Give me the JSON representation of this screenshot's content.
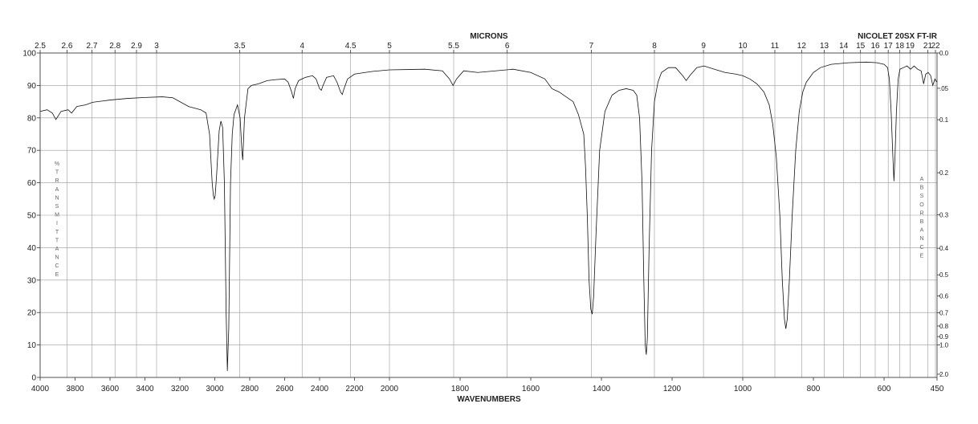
{
  "chart_data": {
    "type": "line",
    "title_top": "MICRONS",
    "instrument": "NICOLET 20SX FT-IR",
    "xlabel": "WAVENUMBERS",
    "ylabel_left": "%TRANSMITTANCE",
    "ylabel_right": "ABSORBANCE",
    "xlim": [
      4000,
      450
    ],
    "ylim": [
      0,
      100
    ],
    "grid": true,
    "wavenumber_ticks": [
      4000,
      3800,
      3600,
      3400,
      3200,
      3000,
      2800,
      2600,
      2400,
      2200,
      2000,
      1800,
      1600,
      1400,
      1200,
      1000,
      800,
      600,
      450
    ],
    "micron_ticks": [
      {
        "value": 2.5,
        "label": "2.5"
      },
      {
        "value": 2.6,
        "label": "2.6"
      },
      {
        "value": 2.7,
        "label": "2.7"
      },
      {
        "value": 2.8,
        "label": "2.8"
      },
      {
        "value": 2.9,
        "label": "2.9"
      },
      {
        "value": 3,
        "label": "3"
      },
      {
        "value": 3.5,
        "label": "3.5"
      },
      {
        "value": 4,
        "label": "4"
      },
      {
        "value": 4.5,
        "label": "4.5"
      },
      {
        "value": 5,
        "label": "5"
      },
      {
        "value": 5.5,
        "label": "5.5"
      },
      {
        "value": 6,
        "label": "6"
      },
      {
        "value": 7,
        "label": "7"
      },
      {
        "value": 8,
        "label": "8"
      },
      {
        "value": 9,
        "label": "9"
      },
      {
        "value": 10,
        "label": "10"
      },
      {
        "value": 11,
        "label": "11"
      },
      {
        "value": 12,
        "label": "12"
      },
      {
        "value": 13,
        "label": "13"
      },
      {
        "value": 14,
        "label": "14"
      },
      {
        "value": 15,
        "label": "15"
      },
      {
        "value": 16,
        "label": "16"
      },
      {
        "value": 17,
        "label": "17"
      },
      {
        "value": 18,
        "label": "18"
      },
      {
        "value": 19,
        "label": "19"
      },
      {
        "value": 21,
        "label": "21"
      },
      {
        "value": 22,
        "label": "22"
      }
    ],
    "transmittance_ticks": [
      0,
      10,
      20,
      30,
      40,
      50,
      60,
      70,
      80,
      90,
      100
    ],
    "absorbance_ticks": [
      {
        "value": 0.0,
        "label": "0.0"
      },
      {
        "value": 0.05,
        "label": ".05"
      },
      {
        "value": 0.1,
        "label": "0.1"
      },
      {
        "value": 0.2,
        "label": "0.2"
      },
      {
        "value": 0.3,
        "label": "0.3"
      },
      {
        "value": 0.4,
        "label": "0.4"
      },
      {
        "value": 0.5,
        "label": "0.5"
      },
      {
        "value": 0.6,
        "label": "0.6"
      },
      {
        "value": 0.7,
        "label": "0.7"
      },
      {
        "value": 0.8,
        "label": "0.8"
      },
      {
        "value": 0.9,
        "label": "0.9"
      },
      {
        "value": 1.0,
        "label": "1.0"
      },
      {
        "value": 2.0,
        "label": "2.0"
      }
    ],
    "series": [
      {
        "points": [
          [
            4000,
            82
          ],
          [
            3960,
            82.5
          ],
          [
            3930,
            81.5
          ],
          [
            3910,
            79.5
          ],
          [
            3880,
            82
          ],
          [
            3840,
            82.5
          ],
          [
            3820,
            81.5
          ],
          [
            3790,
            83.5
          ],
          [
            3740,
            84
          ],
          [
            3700,
            84.8
          ],
          [
            3600,
            85.5
          ],
          [
            3500,
            86
          ],
          [
            3400,
            86.3
          ],
          [
            3300,
            86.5
          ],
          [
            3240,
            86.2
          ],
          [
            3200,
            85
          ],
          [
            3150,
            83.5
          ],
          [
            3080,
            82.5
          ],
          [
            3050,
            81.5
          ],
          [
            3030,
            75
          ],
          [
            3015,
            60
          ],
          [
            3008,
            56
          ],
          [
            3003,
            55
          ],
          [
            2998,
            56
          ],
          [
            2990,
            62
          ],
          [
            2975,
            76
          ],
          [
            2965,
            79
          ],
          [
            2955,
            77
          ],
          [
            2945,
            60
          ],
          [
            2935,
            20
          ],
          [
            2928,
            2
          ],
          [
            2920,
            15
          ],
          [
            2910,
            60
          ],
          [
            2900,
            75
          ],
          [
            2890,
            81
          ],
          [
            2870,
            84
          ],
          [
            2855,
            80
          ],
          [
            2845,
            70
          ],
          [
            2840,
            67
          ],
          [
            2830,
            80
          ],
          [
            2810,
            89
          ],
          [
            2790,
            90
          ],
          [
            2750,
            90.5
          ],
          [
            2700,
            91.5
          ],
          [
            2650,
            91.8
          ],
          [
            2600,
            92
          ],
          [
            2580,
            91
          ],
          [
            2560,
            88
          ],
          [
            2550,
            86
          ],
          [
            2540,
            89
          ],
          [
            2520,
            91.5
          ],
          [
            2480,
            92.5
          ],
          [
            2440,
            93
          ],
          [
            2420,
            92
          ],
          [
            2400,
            89
          ],
          [
            2390,
            88.5
          ],
          [
            2380,
            90
          ],
          [
            2360,
            92.5
          ],
          [
            2320,
            93
          ],
          [
            2300,
            91
          ],
          [
            2280,
            88
          ],
          [
            2270,
            87.2
          ],
          [
            2260,
            89
          ],
          [
            2240,
            92
          ],
          [
            2200,
            93.5
          ],
          [
            2100,
            94.3
          ],
          [
            2000,
            94.8
          ],
          [
            1900,
            95
          ],
          [
            1850,
            94.5
          ],
          [
            1830,
            92
          ],
          [
            1820,
            90
          ],
          [
            1810,
            92
          ],
          [
            1790,
            94.5
          ],
          [
            1750,
            94
          ],
          [
            1700,
            94.5
          ],
          [
            1650,
            95
          ],
          [
            1600,
            94
          ],
          [
            1560,
            92
          ],
          [
            1540,
            89
          ],
          [
            1520,
            88
          ],
          [
            1500,
            86.5
          ],
          [
            1480,
            85
          ],
          [
            1465,
            81
          ],
          [
            1455,
            77
          ],
          [
            1450,
            75
          ],
          [
            1445,
            65
          ],
          [
            1440,
            50
          ],
          [
            1435,
            30
          ],
          [
            1430,
            21
          ],
          [
            1426,
            19.5
          ],
          [
            1422,
            25
          ],
          [
            1415,
            45
          ],
          [
            1405,
            70
          ],
          [
            1390,
            82
          ],
          [
            1370,
            87
          ],
          [
            1350,
            88.5
          ],
          [
            1330,
            89
          ],
          [
            1310,
            88.5
          ],
          [
            1300,
            87
          ],
          [
            1292,
            80
          ],
          [
            1285,
            60
          ],
          [
            1280,
            30
          ],
          [
            1276,
            10
          ],
          [
            1273,
            7
          ],
          [
            1270,
            12
          ],
          [
            1265,
            40
          ],
          [
            1258,
            70
          ],
          [
            1250,
            85
          ],
          [
            1240,
            91
          ],
          [
            1230,
            94
          ],
          [
            1210,
            95.5
          ],
          [
            1190,
            95.5
          ],
          [
            1170,
            93
          ],
          [
            1160,
            91.5
          ],
          [
            1150,
            93
          ],
          [
            1130,
            95.5
          ],
          [
            1110,
            96
          ],
          [
            1080,
            95
          ],
          [
            1050,
            94
          ],
          [
            1020,
            93.5
          ],
          [
            1000,
            93
          ],
          [
            980,
            92
          ],
          [
            960,
            90.5
          ],
          [
            940,
            88
          ],
          [
            925,
            84
          ],
          [
            915,
            78
          ],
          [
            905,
            68
          ],
          [
            895,
            50
          ],
          [
            888,
            30
          ],
          [
            882,
            18
          ],
          [
            878,
            15
          ],
          [
            874,
            18
          ],
          [
            868,
            30
          ],
          [
            860,
            50
          ],
          [
            850,
            70
          ],
          [
            840,
            82
          ],
          [
            830,
            88
          ],
          [
            820,
            91
          ],
          [
            800,
            94
          ],
          [
            780,
            95.5
          ],
          [
            750,
            96.5
          ],
          [
            700,
            97
          ],
          [
            650,
            97.2
          ],
          [
            620,
            97
          ],
          [
            600,
            96.5
          ],
          [
            590,
            95.5
          ],
          [
            585,
            92
          ],
          [
            580,
            82
          ],
          [
            575,
            68
          ],
          [
            572,
            60.5
          ],
          [
            569,
            68
          ],
          [
            565,
            82
          ],
          [
            560,
            92
          ],
          [
            555,
            95
          ],
          [
            545,
            95.5
          ],
          [
            535,
            96
          ],
          [
            525,
            95
          ],
          [
            515,
            96
          ],
          [
            505,
            95
          ],
          [
            495,
            94.5
          ],
          [
            488,
            90.5
          ],
          [
            482,
            93.5
          ],
          [
            475,
            94
          ],
          [
            468,
            93
          ],
          [
            462,
            90
          ],
          [
            456,
            92
          ],
          [
            450,
            91
          ]
        ]
      }
    ]
  }
}
